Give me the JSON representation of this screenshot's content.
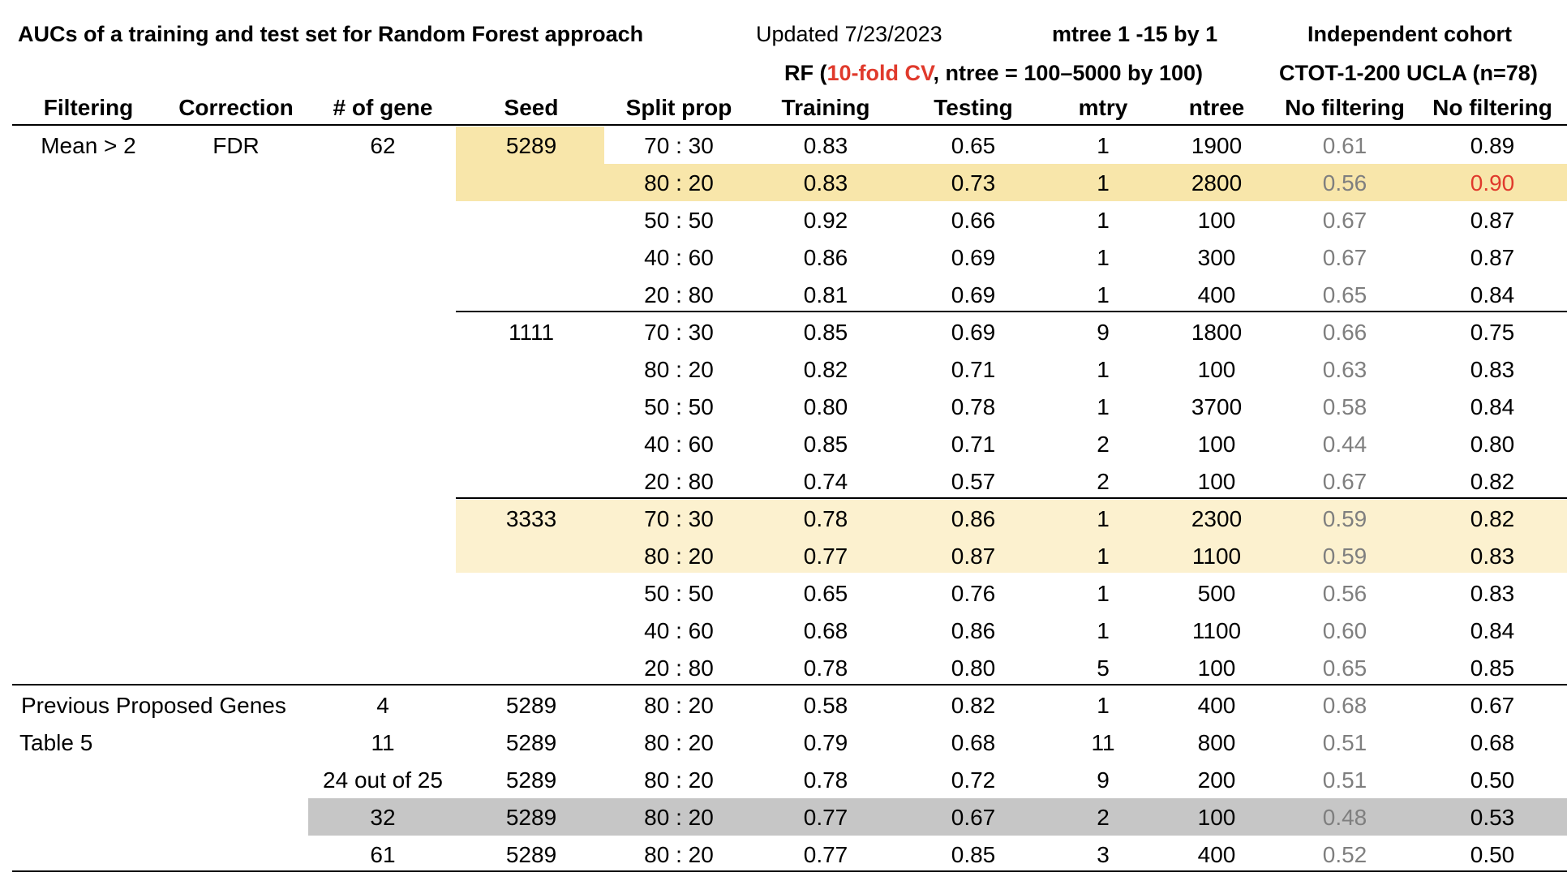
{
  "title": "AUCs of a training and test set for Random Forest approach",
  "updated": "Updated 7/23/2023",
  "mtree_note": "mtree 1 -15 by 1",
  "independent_cohort": "Independent cohort",
  "rf_note": {
    "prefix": "RF (",
    "cv": "10-fold CV",
    "suffix": ", ntree = 100–5000 by 100)"
  },
  "cohort_name": "CTOT-1-200 UCLA (n=78)",
  "columns": [
    "Filtering",
    "Correction",
    "# of gene",
    "Seed",
    "Split prop",
    "Training",
    "Testing",
    "mtry",
    "ntree",
    "No filtering",
    "No filtering"
  ],
  "group_labels": {
    "filtering": "Mean > 2",
    "correction": "FDR",
    "genes": "62",
    "previous": "Previous Proposed Genes",
    "table5": "Table 5"
  },
  "rows": [
    {
      "genes": "",
      "seed": "5289",
      "split": "70 : 30",
      "training": "0.83",
      "testing": "0.65",
      "mtry": "1",
      "ntree": "1900",
      "nofilt1": "0.61",
      "nofilt2": "0.89"
    },
    {
      "genes": "",
      "seed": "",
      "split": "80 : 20",
      "training": "0.83",
      "testing": "0.73",
      "mtry": "1",
      "ntree": "2800",
      "nofilt1": "0.56",
      "nofilt2": "0.90"
    },
    {
      "genes": "",
      "seed": "",
      "split": "50 : 50",
      "training": "0.92",
      "testing": "0.66",
      "mtry": "1",
      "ntree": "100",
      "nofilt1": "0.67",
      "nofilt2": "0.87"
    },
    {
      "genes": "",
      "seed": "",
      "split": "40 : 60",
      "training": "0.86",
      "testing": "0.69",
      "mtry": "1",
      "ntree": "300",
      "nofilt1": "0.67",
      "nofilt2": "0.87"
    },
    {
      "genes": "",
      "seed": "",
      "split": "20 : 80",
      "training": "0.81",
      "testing": "0.69",
      "mtry": "1",
      "ntree": "400",
      "nofilt1": "0.65",
      "nofilt2": "0.84"
    },
    {
      "genes": "",
      "seed": "1111",
      "split": "70 : 30",
      "training": "0.85",
      "testing": "0.69",
      "mtry": "9",
      "ntree": "1800",
      "nofilt1": "0.66",
      "nofilt2": "0.75"
    },
    {
      "genes": "",
      "seed": "",
      "split": "80 : 20",
      "training": "0.82",
      "testing": "0.71",
      "mtry": "1",
      "ntree": "100",
      "nofilt1": "0.63",
      "nofilt2": "0.83"
    },
    {
      "genes": "",
      "seed": "",
      "split": "50 : 50",
      "training": "0.80",
      "testing": "0.78",
      "mtry": "1",
      "ntree": "3700",
      "nofilt1": "0.58",
      "nofilt2": "0.84"
    },
    {
      "genes": "",
      "seed": "",
      "split": "40 : 60",
      "training": "0.85",
      "testing": "0.71",
      "mtry": "2",
      "ntree": "100",
      "nofilt1": "0.44",
      "nofilt2": "0.80"
    },
    {
      "genes": "",
      "seed": "",
      "split": "20 : 80",
      "training": "0.74",
      "testing": "0.57",
      "mtry": "2",
      "ntree": "100",
      "nofilt1": "0.67",
      "nofilt2": "0.82"
    },
    {
      "genes": "",
      "seed": "3333",
      "split": "70 : 30",
      "training": "0.78",
      "testing": "0.86",
      "mtry": "1",
      "ntree": "2300",
      "nofilt1": "0.59",
      "nofilt2": "0.82"
    },
    {
      "genes": "",
      "seed": "",
      "split": "80 : 20",
      "training": "0.77",
      "testing": "0.87",
      "mtry": "1",
      "ntree": "1100",
      "nofilt1": "0.59",
      "nofilt2": "0.83"
    },
    {
      "genes": "",
      "seed": "",
      "split": "50 : 50",
      "training": "0.65",
      "testing": "0.76",
      "mtry": "1",
      "ntree": "500",
      "nofilt1": "0.56",
      "nofilt2": "0.83"
    },
    {
      "genes": "",
      "seed": "",
      "split": "40 : 60",
      "training": "0.68",
      "testing": "0.86",
      "mtry": "1",
      "ntree": "1100",
      "nofilt1": "0.60",
      "nofilt2": "0.84"
    },
    {
      "genes": "",
      "seed": "",
      "split": "20 : 80",
      "training": "0.78",
      "testing": "0.80",
      "mtry": "5",
      "ntree": "100",
      "nofilt1": "0.65",
      "nofilt2": "0.85"
    },
    {
      "genes": "4",
      "seed": "5289",
      "split": "80 : 20",
      "training": "0.58",
      "testing": "0.82",
      "mtry": "1",
      "ntree": "400",
      "nofilt1": "0.68",
      "nofilt2": "0.67"
    },
    {
      "genes": "11",
      "seed": "5289",
      "split": "80 : 20",
      "training": "0.79",
      "testing": "0.68",
      "mtry": "11",
      "ntree": "800",
      "nofilt1": "0.51",
      "nofilt2": "0.68"
    },
    {
      "genes": "24 out of 25",
      "seed": "5289",
      "split": "80 : 20",
      "training": "0.78",
      "testing": "0.72",
      "mtry": "9",
      "ntree": "200",
      "nofilt1": "0.51",
      "nofilt2": "0.50"
    },
    {
      "genes": "32",
      "seed": "5289",
      "split": "80 : 20",
      "training": "0.77",
      "testing": "0.67",
      "mtry": "2",
      "ntree": "100",
      "nofilt1": "0.48",
      "nofilt2": "0.53"
    },
    {
      "genes": "61",
      "seed": "5289",
      "split": "80 : 20",
      "training": "0.77",
      "testing": "0.85",
      "mtry": "3",
      "ntree": "400",
      "nofilt1": "0.52",
      "nofilt2": "0.50"
    }
  ],
  "colors": {
    "highlight_strong": "#f8e6aa",
    "highlight_light": "#fcf1cf",
    "highlight_gray": "#c6c6c6",
    "accent_red": "#e03a2c",
    "muted_gray": "#7f7f7f"
  }
}
